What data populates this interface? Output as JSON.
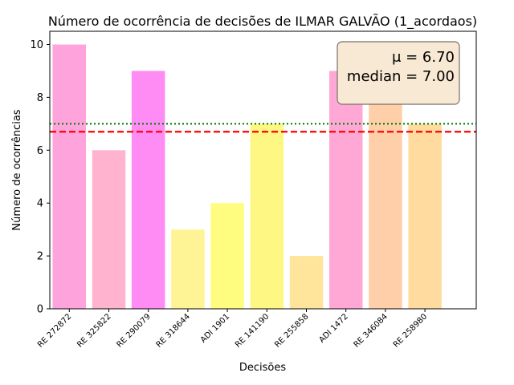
{
  "chart_data": {
    "type": "bar",
    "title": "Número de ocorrência de decisões de ILMAR GALVÃO (1_acordaos)",
    "xlabel": "Decisões",
    "ylabel": "Número de ocorrências",
    "categories": [
      "RE 272872",
      "RE 325822",
      "RE 290079",
      "RE 318644",
      "ADI 1901",
      "RE 141190",
      "RE 255858",
      "ADI 1472",
      "RE 346084",
      "RE 258980"
    ],
    "values": [
      10,
      6,
      9,
      3,
      4,
      7,
      2,
      9,
      10,
      7
    ],
    "bar_colors": [
      "#ffa3dc",
      "#ffb3cf",
      "#ff8cf5",
      "#fff495",
      "#fffd80",
      "#fff783",
      "#ffe49b",
      "#ffa8d6",
      "#ffcfaa",
      "#ffdba0"
    ],
    "ylim": [
      0,
      10.5
    ],
    "yticks": [
      0,
      2,
      4,
      6,
      8,
      10
    ],
    "mean": 6.7,
    "median": 7.0,
    "mean_line_color": "#ff0000",
    "median_line_color": "#008000",
    "stats_box": {
      "mean_label": "μ = 6.70",
      "median_label": "median = 7.00",
      "placement": "top-right",
      "facecolor": "#f8e9d4",
      "edgecolor": "#7a6f66"
    },
    "grid": false
  }
}
